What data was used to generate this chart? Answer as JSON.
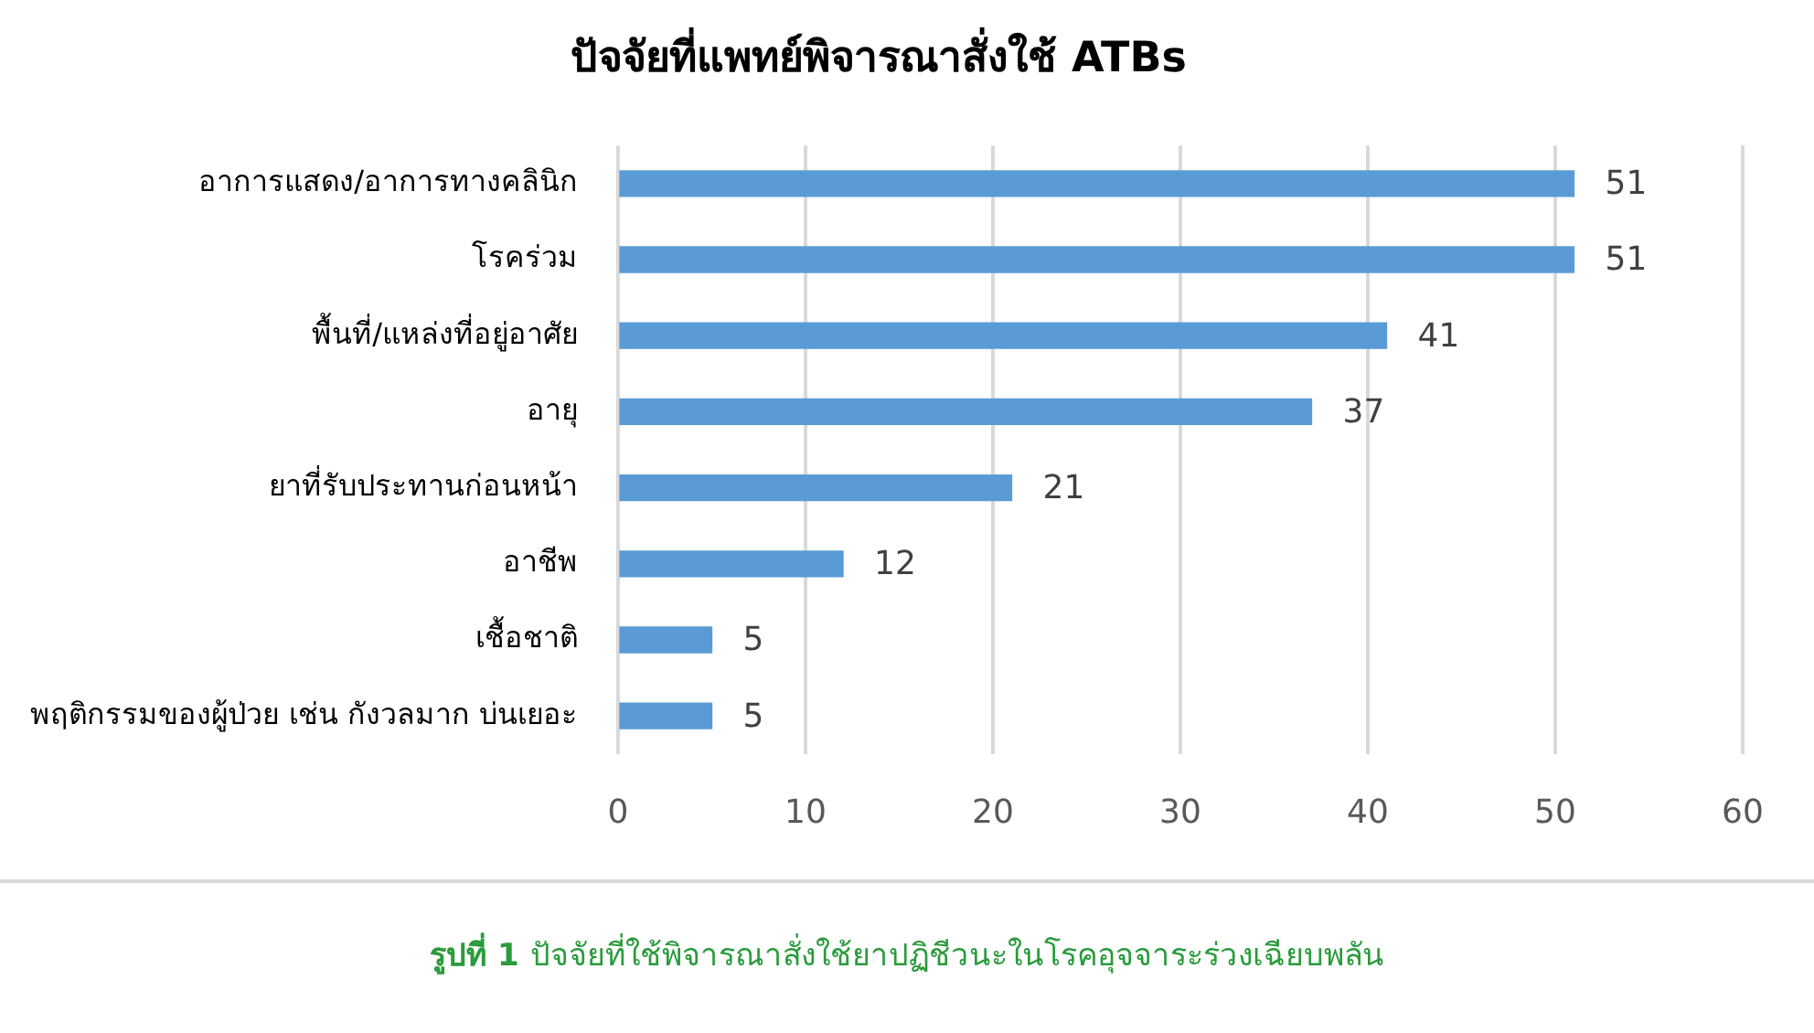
{
  "chart_data": {
    "type": "bar",
    "orientation": "horizontal",
    "title": "ปัจจัยที่แพทย์พิจารณาสั่งใช้ ATBs",
    "categories": [
      "อาการแสดง/อาการทางคลินิก",
      "โรคร่วม",
      "พื้นที่/แหล่งที่อยู่อาศัย",
      "อายุ",
      "ยาที่รับประทานก่อนหน้า",
      "อาชีพ",
      "เชื้อชาติ",
      "พฤติกรรมของผู้ป่วย เช่น กังวลมาก บ่นเยอะ"
    ],
    "values": [
      51,
      51,
      41,
      37,
      21,
      12,
      5,
      5
    ],
    "color": "#5b9bd5",
    "xlim": [
      0,
      60
    ],
    "xticks": [
      0,
      10,
      20,
      30,
      40,
      50,
      60
    ],
    "grid": "x",
    "data_labels": true,
    "annotations": [
      "รูปที่ 1",
      "ปัจจัยที่ใช้พิจารณาสั่งใช้ยาปฏิชีวนะในโรคอุจจาระร่วงเฉียบพลัน"
    ]
  }
}
